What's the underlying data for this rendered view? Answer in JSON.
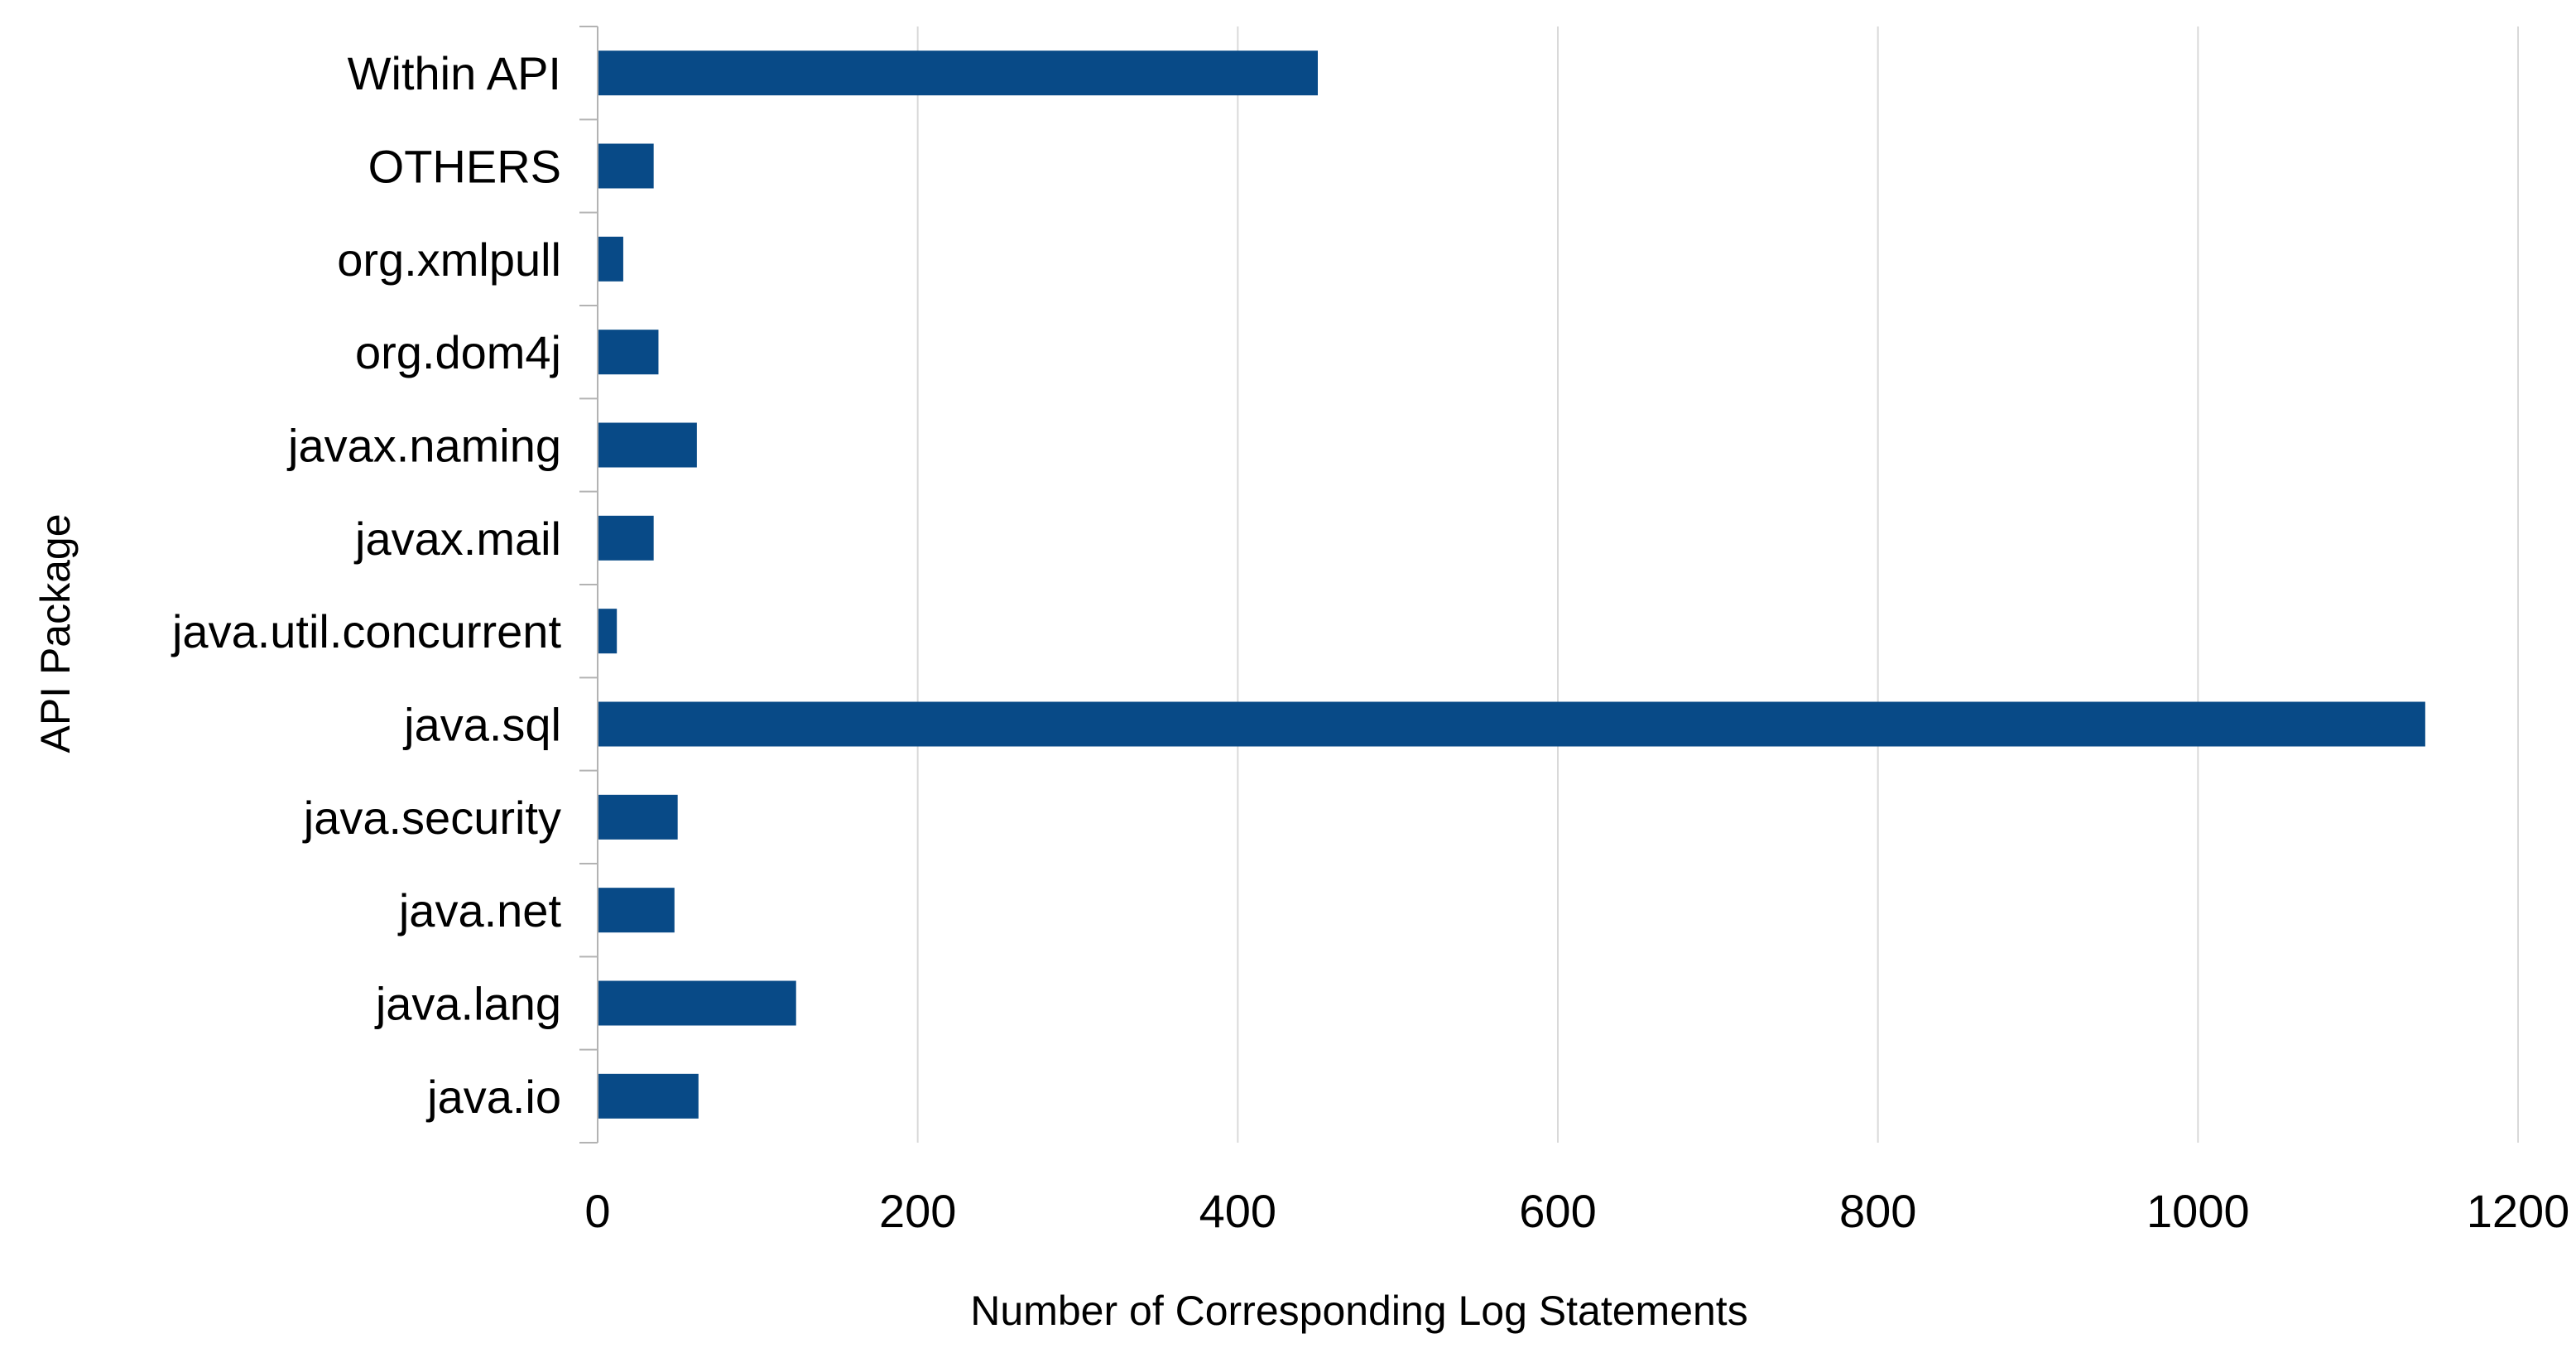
{
  "chart_data": {
    "type": "bar",
    "orientation": "horizontal",
    "categories": [
      "Within API",
      "OTHERS",
      "org.xmlpull",
      "org.dom4j",
      "javax.naming",
      "javax.mail",
      "java.util.concurrent",
      "java.sql",
      "java.security",
      "java.net",
      "java.lang",
      "java.io"
    ],
    "values": [
      450,
      35,
      16,
      38,
      62,
      35,
      12,
      1142,
      50,
      48,
      124,
      63
    ],
    "xlabel": "Number of Corresponding Log Statements",
    "ylabel": "API Package",
    "xlim": [
      0,
      1200
    ],
    "xticks": [
      0,
      200,
      400,
      600,
      800,
      1000,
      1200
    ],
    "grid": "vertical",
    "bar_color": "#084a87"
  }
}
